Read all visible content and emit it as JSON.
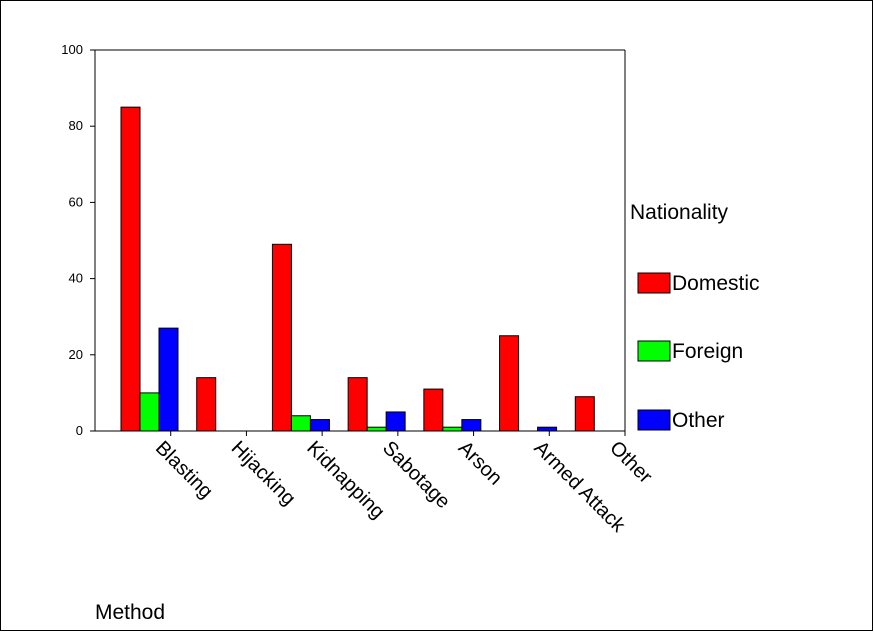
{
  "chart_data": {
    "type": "bar",
    "title": "",
    "xlabel": "Method",
    "ylabel": "",
    "ylim": [
      0,
      100
    ],
    "yticks": [
      0,
      20,
      40,
      60,
      80,
      100
    ],
    "grid": false,
    "legend_title": "Nationality",
    "legend_position": "right",
    "categories": [
      "Blasting",
      "Hijacking",
      "Kidnapping",
      "Sabotage",
      "Arson",
      "Armed Attack",
      "Other"
    ],
    "series": [
      {
        "name": "Domestic",
        "color": "#ff0000",
        "values": [
          85,
          14,
          49,
          14,
          11,
          25,
          9
        ]
      },
      {
        "name": "Foreign",
        "color": "#00ff00",
        "values": [
          10,
          0,
          4,
          1,
          1,
          0,
          0
        ]
      },
      {
        "name": "Other",
        "color": "#0000ff",
        "values": [
          27,
          0,
          3,
          5,
          3,
          1,
          0
        ]
      }
    ]
  }
}
